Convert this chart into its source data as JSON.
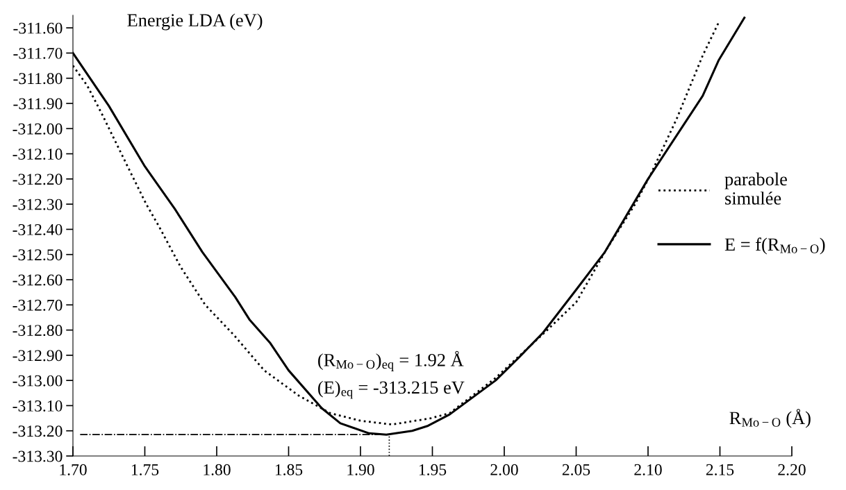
{
  "chart_data": {
    "type": "line",
    "ylabel": "Energie LDA (eV)",
    "xlabel": "R$_{Mo−O}$ (Å)",
    "xlim": [
      1.7,
      2.2
    ],
    "xticks": [
      {
        "value": 1.7,
        "label": "1.70"
      },
      {
        "value": 1.75,
        "label": "1.75"
      },
      {
        "value": 1.8,
        "label": "1.80"
      },
      {
        "value": 1.85,
        "label": "1.85"
      },
      {
        "value": 1.9,
        "label": "1.90"
      },
      {
        "value": 1.95,
        "label": "1.95"
      },
      {
        "value": 2.0,
        "label": "2.00"
      },
      {
        "value": 2.05,
        "label": "2.05"
      },
      {
        "value": 2.1,
        "label": "2.10"
      },
      {
        "value": 2.15,
        "label": "2.15"
      },
      {
        "value": 2.2,
        "label": "2.20"
      }
    ],
    "ylim": [
      -313.3,
      -311.55
    ],
    "yticks": [
      {
        "value": -311.6,
        "label": "-311.60"
      },
      {
        "value": -311.7,
        "label": "-311.70"
      },
      {
        "value": -311.8,
        "label": "-311.80"
      },
      {
        "value": -311.9,
        "label": "-311.90"
      },
      {
        "value": -312.0,
        "label": "-312.00"
      },
      {
        "value": -312.1,
        "label": "-312.10"
      },
      {
        "value": -312.2,
        "label": "-312.20"
      },
      {
        "value": -312.3,
        "label": "-312.30"
      },
      {
        "value": -312.4,
        "label": "-312.40"
      },
      {
        "value": -312.5,
        "label": "-312.50"
      },
      {
        "value": -312.6,
        "label": "-312.60"
      },
      {
        "value": -312.7,
        "label": "-312.70"
      },
      {
        "value": -312.8,
        "label": "-312.80"
      },
      {
        "value": -312.9,
        "label": "-312.90"
      },
      {
        "value": -313.0,
        "label": "-313.00"
      },
      {
        "value": -313.1,
        "label": "-313.10"
      },
      {
        "value": -313.2,
        "label": "-313.20"
      },
      {
        "value": -313.3,
        "label": "-313.30"
      }
    ],
    "grid": false,
    "legend": "right",
    "marker": "none",
    "series": [
      {
        "name": "parabole\nsimulée",
        "color": "#000000",
        "line_style": "dotted",
        "x": [
          1.7,
          1.71,
          1.72,
          1.738,
          1.751,
          1.76,
          1.775,
          1.792,
          1.812,
          1.833,
          1.857,
          1.879,
          1.9,
          1.922,
          1.949,
          1.962,
          1.994,
          2.028,
          2.05,
          2.07,
          2.091,
          2.102,
          2.12,
          2.138,
          2.149
        ],
        "values": [
          -311.75,
          -311.83,
          -311.94,
          -312.15,
          -312.3,
          -312.39,
          -312.55,
          -312.7,
          -312.82,
          -312.96,
          -313.06,
          -313.13,
          -313.16,
          -313.175,
          -313.15,
          -313.13,
          -312.99,
          -312.81,
          -312.69,
          -312.49,
          -312.3,
          -312.18,
          -311.96,
          -311.71,
          -311.58
        ]
      },
      {
        "name": "E = f(R$_{Mo−O}$)",
        "color": "#000000",
        "line_style": "solid",
        "x": [
          1.7,
          1.725,
          1.75,
          1.771,
          1.79,
          1.813,
          1.823,
          1.837,
          1.85,
          1.873,
          1.886,
          1.906,
          1.918,
          1.936,
          1.947,
          1.962,
          1.994,
          2.01,
          2.027,
          2.05,
          2.07,
          2.1,
          2.138,
          2.149,
          2.167
        ],
        "values": [
          -311.7,
          -311.91,
          -312.15,
          -312.32,
          -312.49,
          -312.67,
          -312.76,
          -312.85,
          -312.96,
          -313.11,
          -313.17,
          -313.21,
          -313.215,
          -313.2,
          -313.18,
          -313.135,
          -313.0,
          -312.91,
          -312.81,
          -312.64,
          -312.49,
          -312.2,
          -311.87,
          -311.73,
          -311.56
        ]
      },
      {
        "color": "#000000",
        "line_style": "dotted",
        "x": [
          1.92,
          1.92
        ],
        "values": [
          -313.3,
          -313.215
        ]
      }
    ],
    "ref_lines": [
      {
        "axis": "y",
        "value": -313.215,
        "line_style": "dashdot",
        "color": "#000000"
      }
    ],
    "annotations": [
      "(R$_{Mo−O}$)$_{eq}$ = 1.92 Å",
      "(E)$_{eq}$ = -313.215 eV"
    ]
  }
}
